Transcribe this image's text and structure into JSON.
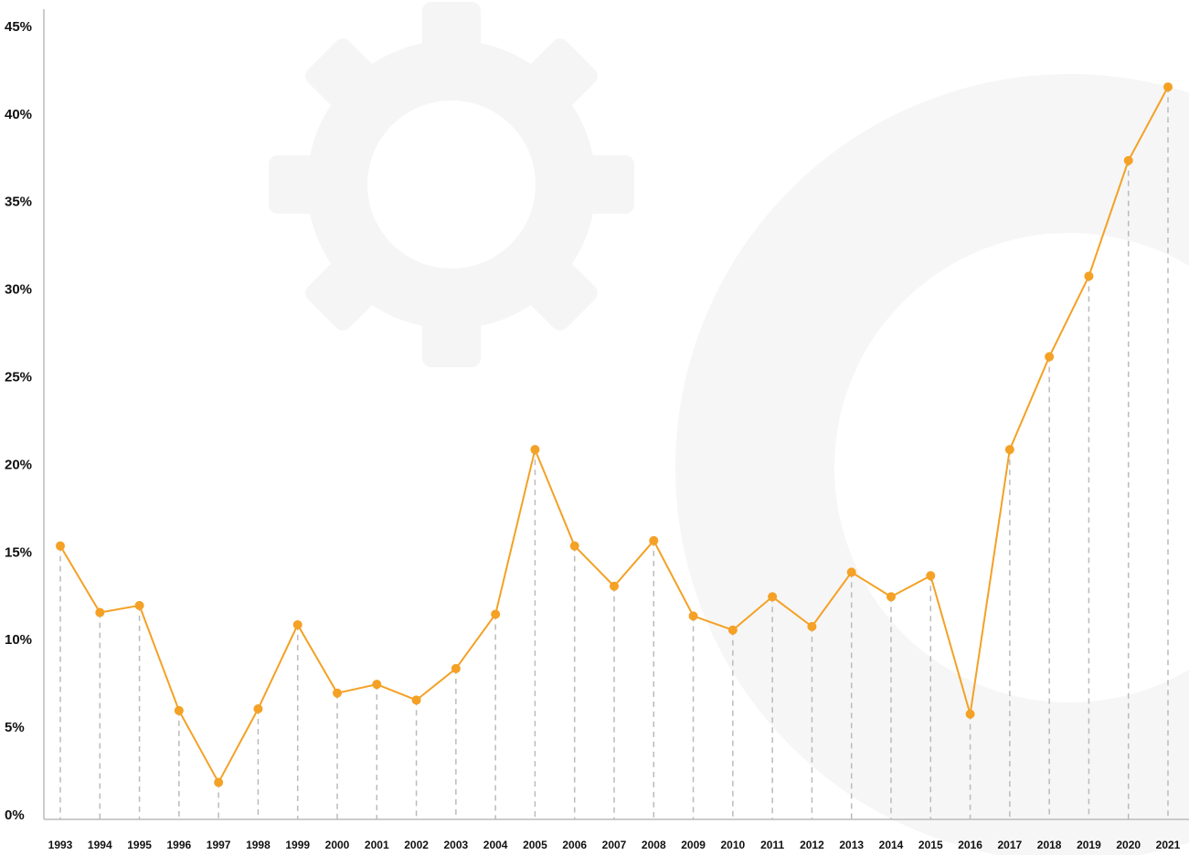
{
  "chart_data": {
    "type": "line",
    "categories": [
      "1993",
      "1994",
      "1995",
      "1996",
      "1997",
      "1998",
      "1999",
      "2000",
      "2001",
      "2002",
      "2003",
      "2004",
      "2005",
      "2006",
      "2007",
      "2008",
      "2009",
      "2010",
      "2011",
      "2012",
      "2013",
      "2014",
      "2015",
      "2016",
      "2017",
      "2018",
      "2019",
      "2020",
      "2021"
    ],
    "values": [
      15.4,
      11.6,
      12.0,
      6.0,
      1.9,
      6.1,
      10.9,
      7.0,
      7.5,
      6.6,
      8.4,
      11.5,
      20.9,
      15.4,
      13.1,
      15.7,
      11.4,
      10.6,
      12.5,
      10.8,
      13.9,
      12.5,
      13.7,
      5.8,
      20.9,
      26.2,
      30.8,
      37.4,
      41.6
    ],
    "color": "#f4a125",
    "ylim": [
      0,
      45
    ],
    "yticks": [
      {
        "value": 0,
        "label": "0%"
      },
      {
        "value": 5,
        "label": "5%"
      },
      {
        "value": 10,
        "label": "10%"
      },
      {
        "value": 15,
        "label": "15%"
      },
      {
        "value": 20,
        "label": "20%"
      },
      {
        "value": 25,
        "label": "25%"
      },
      {
        "value": 30,
        "label": "30%"
      },
      {
        "value": 35,
        "label": "35%"
      },
      {
        "value": 40,
        "label": "40%"
      },
      {
        "value": 45,
        "label": "45%"
      }
    ]
  }
}
